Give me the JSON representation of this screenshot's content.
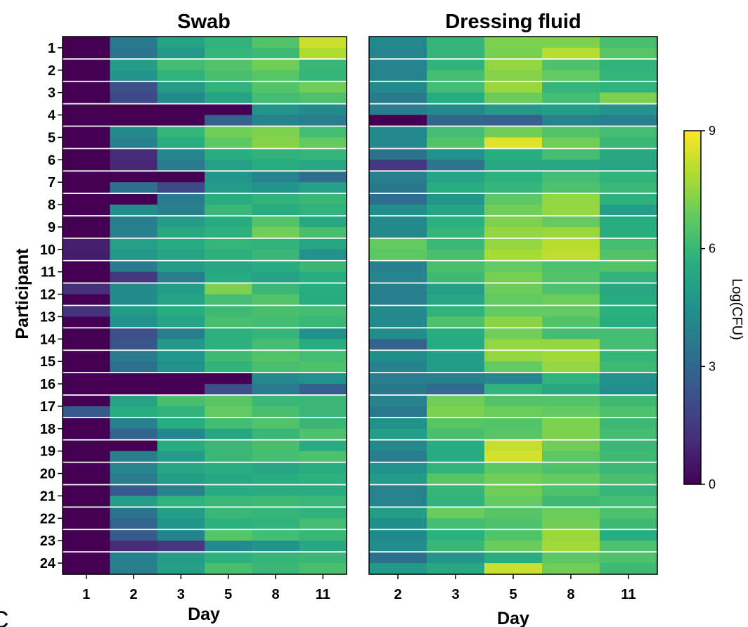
{
  "panel_label": "C",
  "chart_data": {
    "type": "heatmap",
    "ylabel": "Participant",
    "participants": [
      "1",
      "2",
      "3",
      "4",
      "5",
      "6",
      "7",
      "8",
      "9",
      "10",
      "11",
      "12",
      "13",
      "14",
      "15",
      "16",
      "17",
      "18",
      "19",
      "20",
      "21",
      "22",
      "23",
      "24"
    ],
    "colorbar": {
      "label": "Log(CFU)",
      "min": 0,
      "max": 9,
      "ticks": [
        "0",
        "3",
        "6",
        "9"
      ],
      "colormap": "viridis"
    },
    "panels": [
      {
        "title": "Swab",
        "xlabel": "Day",
        "days": [
          "1",
          "2",
          "3",
          "5",
          "8",
          "11"
        ],
        "values": [
          [
            [
              0,
              3.6,
              5.2,
              5.8,
              6.5,
              8.3
            ],
            [
              0,
              3.4,
              4.8,
              5.9,
              6.1,
              7.9
            ]
          ],
          [
            [
              0,
              5.0,
              6.2,
              6.5,
              7.0,
              6.0
            ],
            [
              0,
              4.6,
              5.8,
              6.3,
              6.6,
              5.9
            ]
          ],
          [
            [
              0,
              2.2,
              4.9,
              5.8,
              6.5,
              7.0
            ],
            [
              0,
              2.0,
              4.3,
              5.2,
              6.2,
              6.4
            ]
          ],
          [
            [
              0,
              0,
              0,
              0,
              4.6,
              4.3
            ],
            [
              0,
              0,
              0,
              2.8,
              4.0,
              3.8
            ]
          ],
          [
            [
              0,
              4.2,
              5.9,
              7.0,
              7.2,
              6.2
            ],
            [
              0,
              3.9,
              5.6,
              6.7,
              7.3,
              6.8
            ]
          ],
          [
            [
              0,
              1.1,
              4.1,
              5.6,
              5.8,
              5.9
            ],
            [
              0,
              1.0,
              3.7,
              5.1,
              5.6,
              5.4
            ]
          ],
          [
            [
              0,
              0,
              0,
              4.7,
              4.0,
              3.2
            ],
            [
              0,
              3.3,
              2.0,
              4.9,
              4.6,
              5.1
            ]
          ],
          [
            [
              0,
              0,
              3.7,
              5.6,
              5.8,
              6.0
            ],
            [
              0,
              4.4,
              3.9,
              6.0,
              5.6,
              5.8
            ]
          ],
          [
            [
              0,
              3.8,
              5.0,
              5.5,
              6.5,
              5.4
            ],
            [
              0,
              3.9,
              5.4,
              5.7,
              7.0,
              6.3
            ]
          ],
          [
            [
              0.8,
              5.1,
              5.5,
              5.9,
              5.8,
              5.3
            ],
            [
              0.7,
              4.8,
              5.2,
              5.7,
              6.0,
              4.5
            ]
          ],
          [
            [
              0,
              3.7,
              5.0,
              5.3,
              5.5,
              6.0
            ],
            [
              0,
              1.4,
              3.8,
              5.5,
              5.2,
              5.6
            ]
          ],
          [
            [
              1.2,
              4.3,
              5.0,
              7.2,
              6.0,
              5.6
            ],
            [
              0,
              4.3,
              5.2,
              6.2,
              6.5,
              5.5
            ]
          ],
          [
            [
              1.3,
              4.9,
              5.6,
              6.1,
              6.3,
              6.2
            ],
            [
              0,
              4.5,
              5.2,
              6.3,
              6.2,
              6.0
            ]
          ],
          [
            [
              0,
              2.2,
              3.8,
              5.7,
              5.9,
              4.5
            ],
            [
              0,
              2.4,
              4.8,
              5.7,
              6.2,
              5.6
            ]
          ],
          [
            [
              0,
              3.7,
              4.7,
              6.1,
              6.5,
              6.2
            ],
            [
              0,
              3.3,
              4.5,
              5.8,
              6.3,
              6.4
            ]
          ],
          [
            [
              0,
              0,
              0,
              0,
              4.2,
              4.5
            ],
            [
              0,
              0,
              0,
              2.2,
              3.7,
              2.7
            ]
          ],
          [
            [
              0,
              5.2,
              6.3,
              6.6,
              6.0,
              6.0
            ],
            [
              2.5,
              5.6,
              5.8,
              6.8,
              6.3,
              6.0
            ]
          ],
          [
            [
              0,
              3.9,
              5.6,
              6.2,
              6.5,
              6.0
            ],
            [
              0,
              2.9,
              4.1,
              5.3,
              6.0,
              6.4
            ]
          ],
          [
            [
              0,
              0,
              5.6,
              6.0,
              6.3,
              5.5
            ],
            [
              0,
              3.8,
              4.9,
              6.0,
              6.2,
              6.4
            ]
          ],
          [
            [
              0,
              4.1,
              5.3,
              5.6,
              5.3,
              5.6
            ],
            [
              0,
              3.7,
              5.0,
              5.4,
              5.6,
              5.7
            ]
          ],
          [
            [
              0,
              2.5,
              4.0,
              5.5,
              5.6,
              5.6
            ],
            [
              0,
              5.0,
              5.8,
              6.0,
              6.1,
              6.0
            ]
          ],
          [
            [
              0,
              3.4,
              5.0,
              6.0,
              5.9,
              5.8
            ],
            [
              0,
              2.9,
              4.7,
              5.7,
              5.8,
              6.2
            ]
          ],
          [
            [
              0,
              2.6,
              4.0,
              6.6,
              6.2,
              6.0
            ],
            [
              0,
              1.1,
              1.4,
              4.2,
              4.6,
              5.4
            ]
          ],
          [
            [
              0,
              3.9,
              5.0,
              5.7,
              5.9,
              6.0
            ],
            [
              0,
              3.8,
              5.1,
              6.3,
              6.0,
              6.3
            ]
          ]
        ]
      },
      {
        "title": "Dressing fluid",
        "xlabel": "Day",
        "days": [
          "2",
          "3",
          "5",
          "8",
          "11"
        ],
        "values": [
          [
            [
              4.2,
              5.9,
              7.2,
              7.2,
              6.3
            ],
            [
              4.0,
              5.9,
              7.1,
              8.0,
              6.6
            ]
          ],
          [
            [
              4.0,
              5.8,
              7.5,
              6.4,
              5.8
            ],
            [
              4.0,
              6.2,
              7.3,
              6.8,
              5.9
            ]
          ],
          [
            [
              4.2,
              6.2,
              7.6,
              5.9,
              5.8
            ],
            [
              3.7,
              5.5,
              6.9,
              6.2,
              7.2
            ]
          ],
          [
            [
              3.8,
              4.2,
              4.8,
              5.0,
              4.6
            ],
            [
              0,
              3.0,
              2.8,
              4.0,
              3.8
            ]
          ],
          [
            [
              4.2,
              6.2,
              7.0,
              6.5,
              6.2
            ],
            [
              4.2,
              6.5,
              8.6,
              7.0,
              6.0
            ]
          ],
          [
            [
              3.4,
              4.5,
              5.6,
              6.2,
              5.4
            ],
            [
              1.5,
              3.5,
              5.4,
              5.4,
              5.2
            ]
          ],
          [
            [
              3.9,
              5.2,
              5.7,
              6.2,
              5.8
            ],
            [
              3.6,
              5.6,
              5.9,
              6.4,
              6.0
            ]
          ],
          [
            [
              3.2,
              4.7,
              6.7,
              7.5,
              5.7
            ],
            [
              4.4,
              5.2,
              7.0,
              7.5,
              5.0
            ]
          ],
          [
            [
              4.2,
              5.7,
              7.2,
              6.8,
              5.6
            ],
            [
              4.2,
              5.9,
              7.5,
              7.6,
              5.6
            ]
          ],
          [
            [
              6.8,
              6.0,
              7.5,
              8.0,
              6.2
            ],
            [
              6.7,
              6.3,
              7.8,
              8.1,
              6.5
            ]
          ],
          [
            [
              3.9,
              6.3,
              6.8,
              6.4,
              6.5
            ],
            [
              4.1,
              6.1,
              7.1,
              6.5,
              5.8
            ]
          ],
          [
            [
              3.8,
              5.1,
              6.9,
              6.4,
              5.4
            ],
            [
              3.9,
              5.3,
              6.8,
              6.9,
              5.5
            ]
          ],
          [
            [
              4.3,
              5.8,
              6.8,
              6.8,
              5.7
            ],
            [
              4.2,
              6.4,
              7.4,
              6.5,
              5.6
            ]
          ],
          [
            [
              4.4,
              5.6,
              7.0,
              6.2,
              6.2
            ],
            [
              2.8,
              5.5,
              7.5,
              7.5,
              6.2
            ]
          ],
          [
            [
              4.4,
              5.0,
              7.5,
              7.7,
              5.9
            ],
            [
              4.0,
              5.0,
              6.8,
              7.5,
              6.1
            ]
          ],
          [
            [
              3.8,
              3.9,
              4.1,
              5.8,
              4.5
            ],
            [
              3.6,
              3.1,
              5.8,
              5.4,
              4.4
            ]
          ],
          [
            [
              4.0,
              7.0,
              6.5,
              6.5,
              6.1
            ],
            [
              3.6,
              7.2,
              6.9,
              6.8,
              6.4
            ]
          ],
          [
            [
              4.5,
              6.6,
              6.5,
              7.2,
              6.1
            ],
            [
              5.0,
              6.3,
              6.6,
              7.2,
              6.2
            ]
          ],
          [
            [
              4.2,
              5.5,
              8.2,
              7.0,
              6.0
            ],
            [
              3.8,
              5.5,
              8.4,
              6.7,
              6.1
            ]
          ],
          [
            [
              4.5,
              5.8,
              6.7,
              6.4,
              6.0
            ],
            [
              4.9,
              6.6,
              7.0,
              6.8,
              6.3
            ]
          ],
          [
            [
              4.0,
              5.9,
              7.0,
              6.4,
              5.9
            ],
            [
              4.0,
              5.8,
              6.8,
              6.1,
              6.2
            ]
          ],
          [
            [
              5.0,
              6.9,
              6.6,
              6.9,
              6.4
            ],
            [
              4.4,
              6.2,
              6.4,
              7.0,
              6.1
            ]
          ],
          [
            [
              4.2,
              5.7,
              6.5,
              7.6,
              5.6
            ],
            [
              4.4,
              6.0,
              6.9,
              7.7,
              6.4
            ]
          ],
          [
            [
              3.3,
              4.7,
              5.6,
              6.7,
              6.4
            ],
            [
              4.8,
              5.4,
              8.3,
              7.0,
              6.1
            ]
          ]
        ]
      }
    ]
  }
}
